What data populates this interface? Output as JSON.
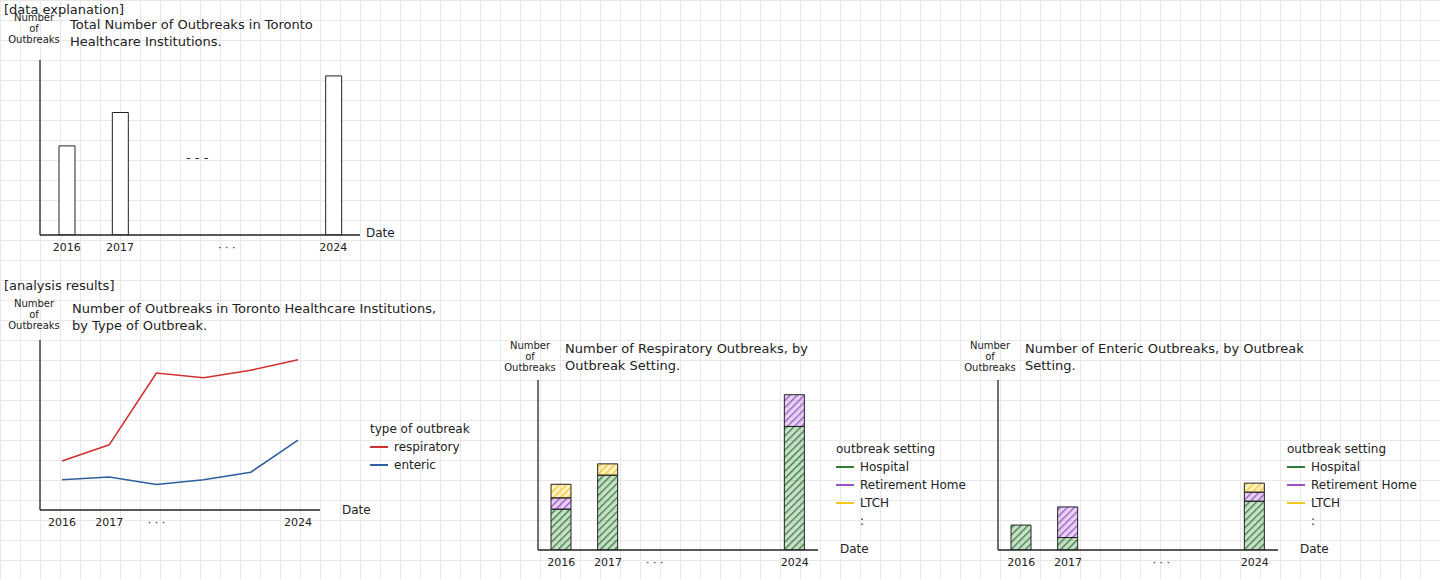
{
  "headings": [
    "[data explanation]",
    "[analysis results]"
  ],
  "chart_data": [
    {
      "type": "bar",
      "title": "Total Number of Outbreaks in Toronto Healthcare Institutions.",
      "x_label": "Date",
      "y_label": "Number of Outbreaks",
      "categories": [
        "2016",
        "2017",
        null,
        "· · ·",
        null,
        "2024"
      ],
      "values": [
        56,
        77,
        null,
        null,
        null,
        100
      ],
      "color": "#ffffff",
      "ylim": [
        0,
        110
      ],
      "tick_labels": "x",
      "annotation": "- - -"
    },
    {
      "type": "line",
      "title": "Number of Outbreaks in Toronto Healthcare Institutions, by Type of Outbreak.",
      "x_label": "Date",
      "y_label": "Number of Outbreaks",
      "categories": [
        "2016",
        "2017",
        "· · ·",
        null,
        null,
        "2024"
      ],
      "series": [
        {
          "name": "respiratory",
          "color": "#d03030",
          "values": [
            52,
            69,
            145,
            140,
            148,
            159
          ]
        },
        {
          "name": "enteric",
          "color": "#2f5f9e",
          "values": [
            32,
            35,
            27,
            32,
            40,
            74
          ]
        }
      ],
      "ylim": [
        0,
        180
      ],
      "tick_labels": "x",
      "legend": "right",
      "legend_title": "type of outbreak"
    },
    {
      "type": "bar",
      "title": "Number of Respiratory Outbreaks, by Outbreak Setting.",
      "x_label": "Date",
      "y_label": "Number of Outbreaks",
      "categories": [
        "2016",
        "2017",
        "· · ·",
        null,
        null,
        "2024"
      ],
      "series": [
        {
          "name": "Hospital",
          "color": "#2e7d32",
          "values": [
            36,
            66,
            null,
            null,
            null,
            109
          ]
        },
        {
          "name": "Retirement Home",
          "color": "#9c4fc7",
          "values": [
            10,
            null,
            null,
            null,
            null,
            28
          ]
        },
        {
          "name": "LTCH",
          "color": "#f2c81e",
          "values": [
            12,
            10,
            null,
            null,
            null,
            null
          ]
        }
      ],
      "stacked": true,
      "ylim": [
        0,
        150
      ],
      "tick_labels": "x",
      "legend": "right",
      "legend_title": "outbreak setting",
      "annotation": ":"
    },
    {
      "type": "bar",
      "title": "Number of Enteric Outbreaks, by Outbreak Setting.",
      "x_label": "Date",
      "y_label": "Number of Outbreaks",
      "categories": [
        "2016",
        "2017",
        null,
        "· · ·",
        null,
        "2024"
      ],
      "series": [
        {
          "name": "Hospital",
          "color": "#2e7d32",
          "values": [
            22,
            11,
            null,
            null,
            null,
            43
          ]
        },
        {
          "name": "Retirement Home",
          "color": "#9c4fc7",
          "values": [
            null,
            27,
            null,
            null,
            null,
            8
          ]
        },
        {
          "name": "LTCH",
          "color": "#f2c81e",
          "values": [
            null,
            null,
            null,
            null,
            null,
            8
          ]
        }
      ],
      "stacked": true,
      "ylim": [
        0,
        150
      ],
      "tick_labels": "x",
      "legend": "right",
      "legend_title": "outbreak setting",
      "annotation": ":"
    }
  ]
}
